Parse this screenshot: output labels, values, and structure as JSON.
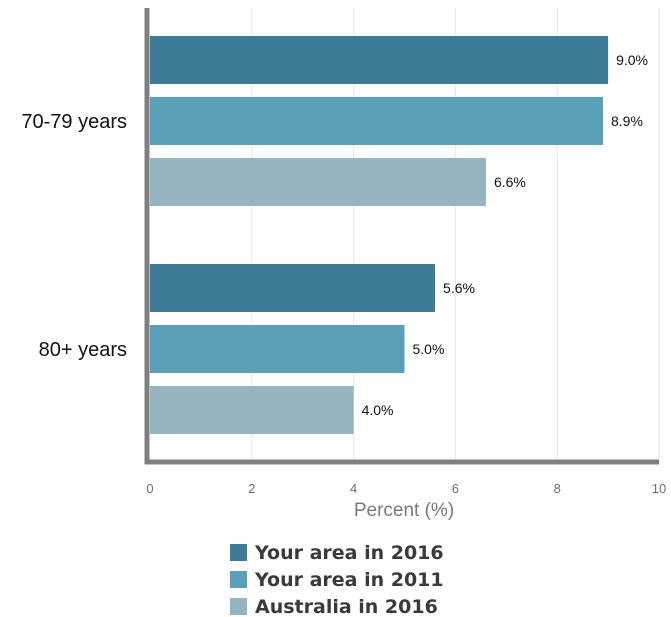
{
  "chart_data": {
    "type": "bar",
    "orientation": "horizontal",
    "categories": [
      "70-79 years",
      "80+ years"
    ],
    "series": [
      {
        "name": "Your area in 2016",
        "values": [
          9.0,
          5.6
        ],
        "labels": [
          "9.0%",
          "5.6%"
        ],
        "color": "#3e7b97"
      },
      {
        "name": "Your area in 2011",
        "values": [
          8.9,
          5.0
        ],
        "labels": [
          "8.9%",
          "5.0%"
        ],
        "color": "#5aa0b9"
      },
      {
        "name": "Australia in 2016",
        "values": [
          6.6,
          4.0
        ],
        "labels": [
          "6.6%",
          "4.0%"
        ],
        "color": "#96b3c0"
      }
    ],
    "xlabel": "Percent (%)",
    "xlim": [
      0,
      10
    ],
    "xticks": [
      0,
      2,
      4,
      6,
      8,
      10
    ],
    "xtick_labels": [
      "0",
      "2",
      "4",
      "6",
      "8",
      "10"
    ],
    "grid": "vertical",
    "legend_position": "bottom"
  }
}
